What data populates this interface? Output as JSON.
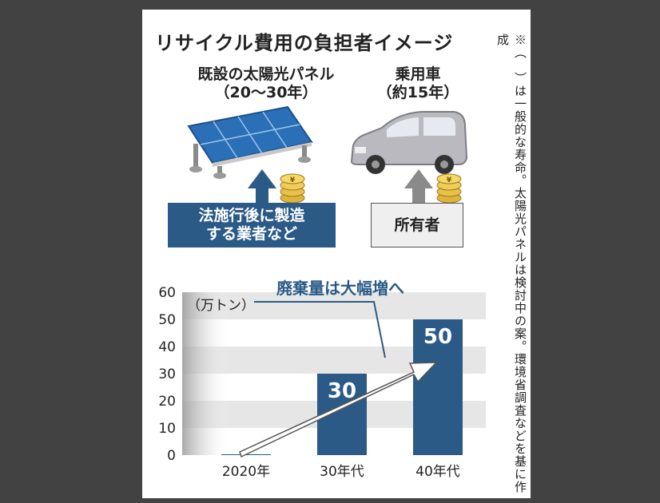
{
  "title": "リサイクル費用の負担者イメージ",
  "solar": {
    "caption_line1": "既設の太陽光パネル",
    "caption_line2": "（20〜30年）"
  },
  "car": {
    "caption_line1": "乗用車",
    "caption_line2": "（約15年）"
  },
  "payers": {
    "solar_line1": "法施行後に製造",
    "solar_line2": "する業者など",
    "car": "所有者"
  },
  "note": "※（　）は一般的な寿命。太陽光パネルは検討中の案。環境省調査などを基に作成",
  "icons": [
    "solar-panel-icon",
    "car-icon",
    "coin-stack-icon",
    "up-arrow-icon"
  ],
  "colors": {
    "bar": "#2b5a87",
    "band": "#e6e6e6",
    "text": "#222222"
  },
  "chart_data": {
    "type": "bar",
    "title": "廃棄量は大幅増へ",
    "unit_label": "（万トン）",
    "categories": [
      "2020年",
      "30年代",
      "40年代"
    ],
    "values": [
      0.3,
      30,
      50
    ],
    "data_labels": [
      "",
      "30",
      "50"
    ],
    "yticks": [
      "60",
      "50",
      "40",
      "30",
      "20",
      "10",
      "0"
    ],
    "ylim": [
      0,
      60
    ],
    "grid": "alternating horizontal bands"
  }
}
